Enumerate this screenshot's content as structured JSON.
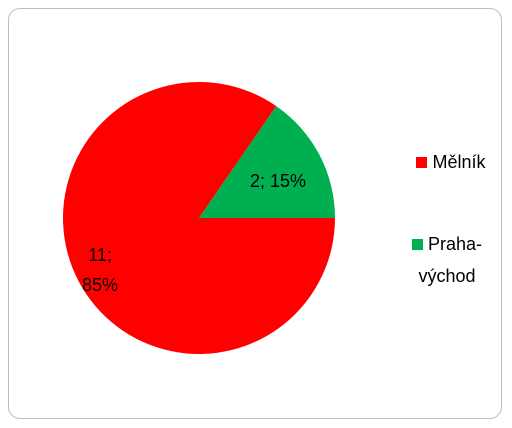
{
  "chart_data": {
    "type": "pie",
    "categories": [
      "Mělník",
      "Praha-východ"
    ],
    "values": [
      11,
      2
    ],
    "value_labels": [
      "11; 85%",
      "2; 15%"
    ],
    "colors": [
      "#ff0000",
      "#00b050"
    ],
    "legend": "right"
  }
}
